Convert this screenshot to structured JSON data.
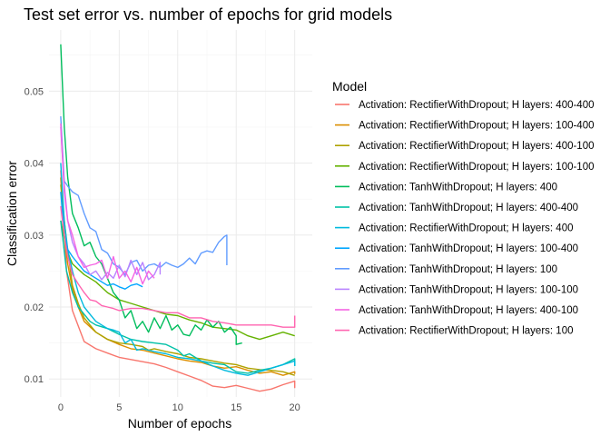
{
  "chart_data": {
    "type": "line",
    "title": "Test set error vs. number of epochs for grid models",
    "xlabel": "Number of epochs",
    "ylabel": "Classification error",
    "xlim": [
      -1,
      21.5
    ],
    "ylim": [
      0.0075,
      0.0585
    ],
    "xticks": [
      0,
      5,
      10,
      15,
      20
    ],
    "yticks": [
      0.01,
      0.02,
      0.03,
      0.04,
      0.05
    ],
    "grid": true,
    "legend": {
      "title": "Model",
      "position": "right"
    },
    "series": [
      {
        "name": "Activation: RectifierWithDropout; H layers: 400-400",
        "color": "#F8766D",
        "x": [
          0,
          0.5,
          1,
          2,
          3,
          4,
          5,
          6,
          7,
          8,
          9,
          10,
          11,
          12,
          13,
          14,
          15,
          16,
          17,
          18,
          19,
          20,
          20,
          20
        ],
        "y": [
          0.039,
          0.025,
          0.0195,
          0.0152,
          0.0142,
          0.0136,
          0.013,
          0.0127,
          0.0124,
          0.0121,
          0.0116,
          0.011,
          0.0104,
          0.0098,
          0.009,
          0.0088,
          0.0091,
          0.0087,
          0.0083,
          0.0086,
          0.0092,
          0.0097,
          0.0088,
          0.0091
        ]
      },
      {
        "name": "Activation: RectifierWithDropout; H layers: 100-400",
        "color": "#DB8E00",
        "x": [
          0,
          0.3,
          0.6,
          1,
          1.5,
          2,
          3,
          4,
          5,
          6,
          7,
          8,
          9,
          10,
          11,
          12,
          13,
          14,
          15,
          16,
          17,
          18,
          19,
          20,
          20
        ],
        "y": [
          0.038,
          0.03,
          0.026,
          0.0225,
          0.02,
          0.018,
          0.0165,
          0.0155,
          0.0148,
          0.0142,
          0.014,
          0.0136,
          0.0132,
          0.0128,
          0.0125,
          0.0123,
          0.0118,
          0.0115,
          0.0117,
          0.0112,
          0.0108,
          0.011,
          0.0105,
          0.011,
          0.0107
        ]
      },
      {
        "name": "Activation: RectifierWithDropout; H layers: 400-100",
        "color": "#AEA200",
        "x": [
          0,
          0.5,
          1,
          1.5,
          2,
          3,
          4,
          5,
          6,
          7,
          7.5,
          8,
          9,
          10,
          11,
          12,
          13,
          14,
          15,
          16,
          17,
          18,
          19,
          20
        ],
        "y": [
          0.037,
          0.029,
          0.023,
          0.0205,
          0.0185,
          0.0165,
          0.0155,
          0.015,
          0.0148,
          0.0145,
          0.014,
          0.0142,
          0.0138,
          0.0135,
          0.013,
          0.0128,
          0.0125,
          0.0122,
          0.012,
          0.0115,
          0.0113,
          0.0112,
          0.011,
          0.0105
        ]
      },
      {
        "name": "Activation: RectifierWithDropout; H layers: 100-100",
        "color": "#64B200",
        "x": [
          0,
          0.5,
          1,
          2,
          3,
          4,
          5,
          6,
          7,
          8,
          9,
          10,
          11,
          12,
          13,
          14,
          15,
          16,
          17,
          18,
          19,
          20
        ],
        "y": [
          0.032,
          0.028,
          0.026,
          0.0245,
          0.0235,
          0.022,
          0.021,
          0.0205,
          0.02,
          0.0195,
          0.019,
          0.0188,
          0.0182,
          0.0178,
          0.0172,
          0.017,
          0.0168,
          0.016,
          0.0155,
          0.016,
          0.0165,
          0.016
        ]
      },
      {
        "name": "Activation: TanhWithDropout; H layers: 400",
        "color": "#00BD5C",
        "x": [
          0,
          0.3,
          0.6,
          1,
          1.5,
          2,
          2.5,
          3,
          3.5,
          4,
          4.5,
          5,
          5.5,
          6,
          6.5,
          7,
          7.5,
          8,
          8.5,
          9,
          9.5,
          10,
          10.5,
          11,
          11.5,
          12,
          12.5,
          13,
          13.5,
          14,
          14.5,
          15,
          15,
          15.5
        ],
        "y": [
          0.0565,
          0.045,
          0.038,
          0.033,
          0.031,
          0.0285,
          0.029,
          0.027,
          0.026,
          0.024,
          0.022,
          0.021,
          0.0185,
          0.0195,
          0.017,
          0.018,
          0.0165,
          0.0185,
          0.017,
          0.0188,
          0.0168,
          0.0175,
          0.0162,
          0.016,
          0.0175,
          0.0168,
          0.0182,
          0.0172,
          0.018,
          0.0165,
          0.0172,
          0.016,
          0.0148,
          0.015
        ]
      },
      {
        "name": "Activation: TanhWithDropout; H layers: 400-400",
        "color": "#00C1A7",
        "x": [
          0,
          0.5,
          1,
          1.5,
          2,
          2.5,
          3,
          4,
          5,
          6,
          7,
          8,
          9,
          10,
          10.5,
          11,
          12,
          13,
          14,
          15,
          16,
          17,
          18,
          19,
          20,
          20
        ],
        "y": [
          0.032,
          0.025,
          0.022,
          0.02,
          0.019,
          0.018,
          0.0175,
          0.017,
          0.0162,
          0.0155,
          0.0152,
          0.015,
          0.0148,
          0.014,
          0.0132,
          0.0135,
          0.0125,
          0.0122,
          0.012,
          0.011,
          0.0108,
          0.0112,
          0.0115,
          0.012,
          0.0128,
          0.0118
        ]
      },
      {
        "name": "Activation: RectifierWithDropout; H layers: 400",
        "color": "#00BADE",
        "x": [
          0,
          0.3,
          0.6,
          1,
          1.5,
          2,
          2.5,
          3,
          3.5,
          4,
          4.5,
          5,
          5.5,
          6,
          6.5,
          7,
          7.5,
          8,
          9,
          10,
          11,
          12,
          13,
          14,
          15,
          16,
          17,
          18,
          19,
          20,
          20
        ],
        "y": [
          0.04,
          0.032,
          0.028,
          0.025,
          0.022,
          0.02,
          0.019,
          0.018,
          0.0175,
          0.017,
          0.0168,
          0.0165,
          0.015,
          0.0155,
          0.014,
          0.0142,
          0.014,
          0.0138,
          0.0135,
          0.013,
          0.0128,
          0.0125,
          0.0118,
          0.0112,
          0.0108,
          0.0105,
          0.011,
          0.0115,
          0.012,
          0.0125,
          0.0118
        ]
      },
      {
        "name": "Activation: TanhWithDropout; H layers: 100-400",
        "color": "#00A6FF",
        "x": [
          0,
          0.3,
          0.6,
          1,
          1.5,
          2,
          2.5,
          3,
          3.5,
          4,
          4.5,
          5,
          5.5,
          6,
          6.5,
          7
        ],
        "y": [
          0.036,
          0.03,
          0.028,
          0.027,
          0.026,
          0.025,
          0.0245,
          0.024,
          0.0235,
          0.023,
          0.0232,
          0.0228,
          0.0225,
          0.023,
          0.0232,
          0.0228
        ]
      },
      {
        "name": "Activation: TanhWithDropout; H layers: 100",
        "color": "#619CFF",
        "x": [
          0,
          0.3,
          0.6,
          1,
          1.5,
          2,
          2.5,
          3,
          3.5,
          4,
          4.5,
          5,
          5.5,
          6,
          6.5,
          7,
          7.5,
          8,
          8.5,
          9,
          9.5,
          10,
          10.5,
          11,
          11.5,
          12,
          12.5,
          13,
          13.5,
          14,
          14.2,
          14.2
        ],
        "y": [
          0.0465,
          0.0375,
          0.0368,
          0.036,
          0.0355,
          0.033,
          0.031,
          0.0305,
          0.028,
          0.0275,
          0.026,
          0.0255,
          0.0245,
          0.0262,
          0.0265,
          0.025,
          0.0258,
          0.026,
          0.0255,
          0.0262,
          0.0258,
          0.0255,
          0.026,
          0.0268,
          0.026,
          0.0275,
          0.0278,
          0.0276,
          0.029,
          0.0298,
          0.03,
          0.0258
        ]
      },
      {
        "name": "Activation: TanhWithDropout; H layers: 100-100",
        "color": "#B983FF",
        "x": [
          0,
          0.3,
          0.6,
          1,
          1.5,
          2,
          2.5,
          3,
          3.5,
          4,
          4.5,
          5,
          5.5,
          6,
          6.5,
          7,
          7.5,
          8,
          8.5,
          8.5
        ],
        "y": [
          0.045,
          0.037,
          0.032,
          0.029,
          0.027,
          0.026,
          0.0245,
          0.025,
          0.0238,
          0.0248,
          0.024,
          0.0258,
          0.0242,
          0.0265,
          0.0245,
          0.0262,
          0.0238,
          0.0245,
          0.0262,
          0.0245
        ]
      },
      {
        "name": "Activation: TanhWithDropout; H layers: 400-100",
        "color": "#F564E3",
        "x": [
          0,
          0.3,
          0.6,
          1,
          1.5,
          2,
          2.5,
          3,
          3.5,
          4,
          4.5,
          5,
          5.5,
          6,
          6.5,
          7,
          7.5,
          8
        ],
        "y": [
          0.0455,
          0.036,
          0.032,
          0.03,
          0.027,
          0.0255,
          0.0258,
          0.026,
          0.0265,
          0.024,
          0.027,
          0.024,
          0.025,
          0.0235,
          0.0255,
          0.0232,
          0.025,
          0.024
        ]
      },
      {
        "name": "Activation: RectifierWithDropout; H layers: 100",
        "color": "#FF64B0",
        "x": [
          0,
          0.3,
          0.6,
          1,
          1.5,
          2,
          2.5,
          3,
          3.5,
          4,
          4.5,
          5,
          6,
          7,
          8,
          9,
          10,
          11,
          12,
          13,
          14,
          15,
          16,
          17,
          18,
          19,
          20,
          20
        ],
        "y": [
          0.034,
          0.03,
          0.027,
          0.0245,
          0.0232,
          0.022,
          0.021,
          0.0208,
          0.0202,
          0.02,
          0.0198,
          0.0195,
          0.0198,
          0.0198,
          0.0195,
          0.0192,
          0.0192,
          0.0185,
          0.0185,
          0.018,
          0.0178,
          0.0175,
          0.0175,
          0.0175,
          0.0175,
          0.0172,
          0.0172,
          0.0188
        ]
      }
    ]
  }
}
